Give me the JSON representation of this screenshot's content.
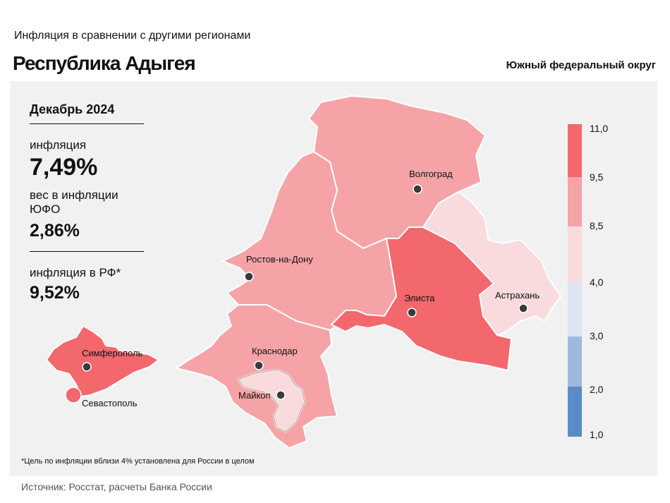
{
  "header": {
    "subtitle": "Инфляция  в сравнении  с другими  регионами",
    "title": "Республика Адыгея",
    "district": "Южный федеральный округ"
  },
  "info": {
    "month": "Декабрь 2024",
    "inflation_label": "инфляция",
    "inflation_value": "7,49%",
    "weight_label": "вес в инфляции  ЮФО",
    "weight_value": "2,86%",
    "rf_label": "инфляция  в РФ*",
    "rf_value": "9,52%"
  },
  "footnote": "*Цель по инфляции вблизи 4% установлена для России в целом",
  "source": "Источник: Росстат, расчеты Банка России",
  "legend": {
    "ticks": [
      "11,0",
      "9,5",
      "8,5",
      "4,0",
      "3,0",
      "2,0",
      "1,0"
    ],
    "bins": [
      {
        "from": 9.5,
        "to": 11.0,
        "color": "#f2686d"
      },
      {
        "from": 8.5,
        "to": 9.5,
        "color": "#f6a3a7"
      },
      {
        "from": 4.0,
        "to": 8.5,
        "color": "#f9dadd"
      },
      {
        "from": 3.0,
        "to": 4.0,
        "color": "#dde5f3"
      },
      {
        "from": 2.0,
        "to": 3.0,
        "color": "#9dbade"
      },
      {
        "from": 1.0,
        "to": 2.0,
        "color": "#5b8cc8"
      }
    ]
  },
  "cities": {
    "volgograd": "Волгоград",
    "rostov": "Ростов-на-Дону",
    "elista": "Элиста",
    "astrakhan": "Астрахань",
    "simferopol": "Симферополь",
    "sevastopol": "Севастополь",
    "krasnodar": "Краснодар",
    "maykop": "Майкоп"
  },
  "colors": {
    "high": "#f2686d",
    "mid": "#f6a3a7",
    "low": "#f9dadd",
    "border": "#ffffff",
    "panel": "#f1f1f1",
    "dot": "#3a3a3a"
  }
}
